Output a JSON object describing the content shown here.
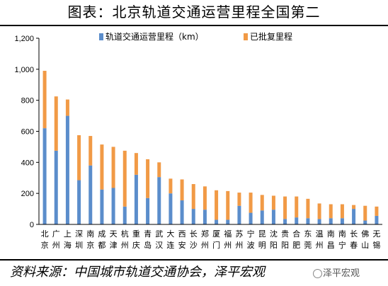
{
  "title": "图表：北京轨道交通运营里程全国第二",
  "source": "资料来源：中国城市轨道交通协会，泽平宏观",
  "watermark": "泽平宏观",
  "colors": {
    "operating": "#5B8DCB",
    "approved": "#F19A46"
  },
  "chart_data": {
    "type": "bar",
    "stacked": true,
    "title": "",
    "xlabel": "",
    "ylabel": "",
    "ylim": [
      0,
      1200
    ],
    "yticks": [
      0,
      200,
      400,
      600,
      800,
      1000,
      1200
    ],
    "ytick_labels": [
      "0",
      "200",
      "400",
      "600",
      "800",
      "1,000",
      "1,200"
    ],
    "grid": false,
    "legend": "top",
    "categories": [
      "北京",
      "广州",
      "上海",
      "深圳",
      "南京",
      "成都",
      "天津",
      "杭州",
      "重庆",
      "青岛",
      "武汉",
      "大连",
      "西安",
      "长沙",
      "郑州",
      "厦门",
      "福州",
      "苏州",
      "宁波",
      "昆明",
      "沈阳",
      "贵阳",
      "合肥",
      "东莞",
      "温州",
      "南昌",
      "南宁",
      "长春",
      "佛山",
      "无锡"
    ],
    "series": [
      {
        "name": "轨道交通运营里程（km）",
        "values": [
          620,
          475,
          700,
          285,
          380,
          225,
          235,
          115,
          320,
          170,
          305,
          200,
          155,
          100,
          95,
          30,
          30,
          120,
          75,
          90,
          95,
          35,
          45,
          40,
          35,
          40,
          40,
          100,
          25,
          55
        ]
      },
      {
        "name": "已批复里程",
        "values": [
          370,
          350,
          105,
          290,
          190,
          290,
          265,
          360,
          140,
          250,
          95,
          95,
          135,
          160,
          150,
          190,
          185,
          85,
          130,
          100,
          90,
          145,
          135,
          125,
          100,
          90,
          90,
          25,
          95,
          60
        ]
      }
    ]
  }
}
